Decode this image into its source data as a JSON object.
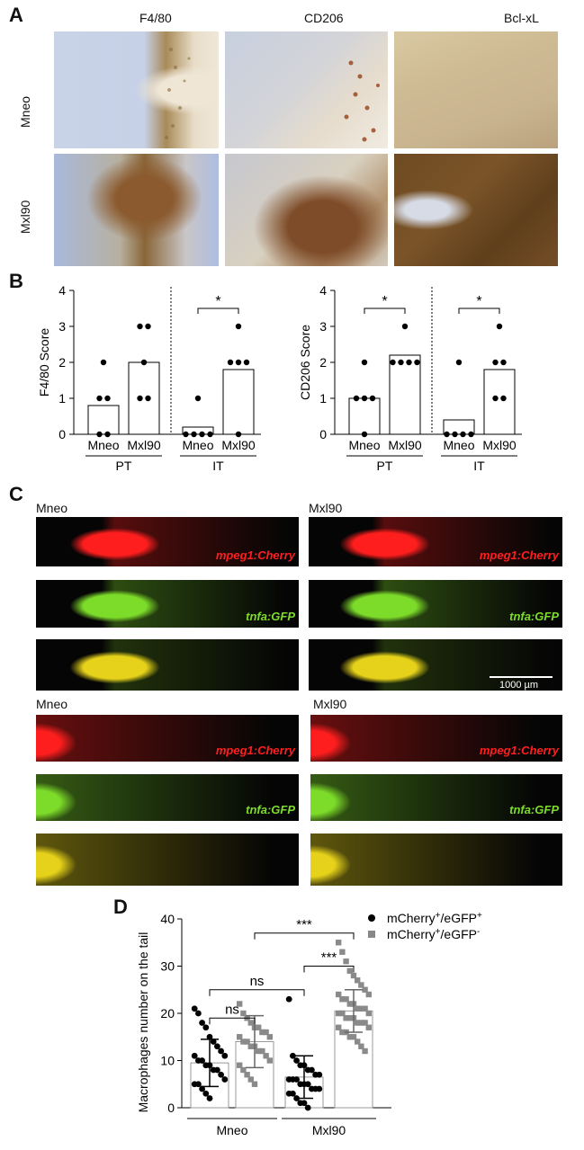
{
  "panel_a": {
    "letter": "A",
    "columns": [
      "F4/80",
      "CD206",
      "Bcl-xL"
    ],
    "rows": [
      "Mneo",
      "Mxl90"
    ],
    "images": [
      {
        "row": "Mneo",
        "col": "F4/80",
        "desc": "ihc-mneo-f480"
      },
      {
        "row": "Mneo",
        "col": "CD206",
        "desc": "ihc-mneo-cd206"
      },
      {
        "row": "Mneo",
        "col": "Bcl-xL",
        "desc": "ihc-mneo-bclxl"
      },
      {
        "row": "Mxl90",
        "col": "F4/80",
        "desc": "ihc-mxl90-f480"
      },
      {
        "row": "Mxl90",
        "col": "CD206",
        "desc": "ihc-mxl90-cd206"
      },
      {
        "row": "Mxl90",
        "col": "Bcl-xL",
        "desc": "ihc-mxl90-bclxl"
      }
    ]
  },
  "panel_b": {
    "letter": "B",
    "group_labels": [
      "PT",
      "IT"
    ],
    "significance": "*"
  },
  "panel_c": {
    "letter": "C",
    "top_left": "Mneo",
    "top_right": "Mxl90",
    "bottom_left": "Mneo",
    "bottom_right": "Mxl90",
    "channel_red": "mpeg1:Cherry",
    "channel_green": "tnfa:GFP",
    "scale_bar": "1000 µm",
    "colors": {
      "red": "#ff1e1e",
      "green": "#7ddc2a",
      "background": "#050505"
    }
  },
  "panel_d": {
    "letter": "D",
    "legend": [
      {
        "label_main": "mCherry",
        "sup1": "+",
        "mid": "/eGFP",
        "sup2": "+",
        "marker": "circle",
        "color": "#000000"
      },
      {
        "label_main": "mCherry",
        "sup1": "+",
        "mid": "/eGFP",
        "sup2": "-",
        "marker": "square",
        "color": "#888888"
      }
    ],
    "significance": [
      "***",
      "***",
      "ns",
      "ns"
    ]
  },
  "chart_data": [
    {
      "type": "bar",
      "panel": "B-left",
      "ylabel": "F4/80 Score",
      "ylim": [
        0,
        4
      ],
      "yticks": [
        0,
        1,
        2,
        3,
        4
      ],
      "categories": [
        "Mneo",
        "Mxl90",
        "Mneo",
        "Mxl90"
      ],
      "groups": [
        "PT",
        "PT",
        "IT",
        "IT"
      ],
      "values": [
        0.8,
        2.0,
        0.2,
        1.8
      ],
      "points": [
        [
          0,
          0,
          1,
          1,
          2
        ],
        [
          1,
          1,
          2,
          3,
          3
        ],
        [
          0,
          0,
          0,
          0,
          1
        ],
        [
          0,
          2,
          2,
          2,
          3
        ]
      ],
      "annotations": [
        {
          "between": [
            2,
            3
          ],
          "text": "*"
        }
      ]
    },
    {
      "type": "bar",
      "panel": "B-right",
      "ylabel": "CD206 Score",
      "ylim": [
        0,
        4
      ],
      "yticks": [
        0,
        1,
        2,
        3,
        4
      ],
      "categories": [
        "Mneo",
        "Mxl90",
        "Mneo",
        "Mxl90"
      ],
      "groups": [
        "PT",
        "PT",
        "IT",
        "IT"
      ],
      "values": [
        1.0,
        2.2,
        0.4,
        1.8
      ],
      "points": [
        [
          0,
          1,
          1,
          1,
          2
        ],
        [
          2,
          2,
          2,
          2,
          3
        ],
        [
          0,
          0,
          0,
          0,
          2
        ],
        [
          1,
          1,
          2,
          2,
          3
        ]
      ],
      "annotations": [
        {
          "between": [
            0,
            1
          ],
          "text": "*"
        },
        {
          "between": [
            2,
            3
          ],
          "text": "*"
        }
      ]
    },
    {
      "type": "scatter",
      "panel": "D",
      "ylabel": "Macrophages number on the tail",
      "ylim": [
        0,
        40
      ],
      "yticks": [
        0,
        10,
        20,
        30,
        40
      ],
      "groups": [
        "Mneo",
        "Mxl90"
      ],
      "series": [
        {
          "name": "mCherry+/eGFP+",
          "group": "Mneo",
          "mean": 9.5,
          "sd": 5.0,
          "values": [
            21,
            20,
            18,
            17,
            15,
            14,
            13,
            12,
            11,
            11,
            10,
            10,
            9,
            9,
            8,
            8,
            7,
            6,
            5,
            5,
            4,
            3,
            2
          ]
        },
        {
          "name": "mCherry+/eGFP-",
          "group": "Mneo",
          "mean": 14,
          "sd": 5.5,
          "values": [
            22,
            20,
            19,
            18,
            17,
            17,
            16,
            16,
            15,
            15,
            14,
            14,
            13,
            13,
            12,
            12,
            11,
            10,
            9,
            8,
            7,
            6,
            5
          ]
        },
        {
          "name": "mCherry+/eGFP+",
          "group": "Mxl90",
          "mean": 6.5,
          "sd": 4.5,
          "values": [
            23,
            11,
            10,
            9,
            9,
            8,
            8,
            7,
            7,
            6,
            6,
            6,
            5,
            5,
            5,
            4,
            4,
            4,
            3,
            3,
            2,
            1,
            1,
            0
          ]
        },
        {
          "name": "mCherry+/eGFP-",
          "group": "Mxl90",
          "mean": 20.5,
          "sd": 4.5,
          "values": [
            35,
            33,
            31,
            29,
            28,
            27,
            26,
            25,
            24,
            24,
            23,
            23,
            22,
            22,
            21,
            21,
            21,
            20,
            20,
            20,
            19,
            19,
            19,
            18,
            18,
            18,
            17,
            17,
            16,
            16,
            15,
            15,
            14,
            13,
            12
          ]
        }
      ],
      "annotations": [
        {
          "text": "***",
          "between": [
            "Mneo eGFP+",
            "Mxl90 eGFP-"
          ]
        },
        {
          "text": "***",
          "between": [
            "Mxl90 eGFP+",
            "Mxl90 eGFP-"
          ]
        },
        {
          "text": "ns",
          "between": [
            "Mneo eGFP+",
            "Mxl90 eGFP+"
          ]
        },
        {
          "text": "ns",
          "between": [
            "Mneo eGFP+",
            "Mneo eGFP-"
          ]
        }
      ]
    }
  ]
}
